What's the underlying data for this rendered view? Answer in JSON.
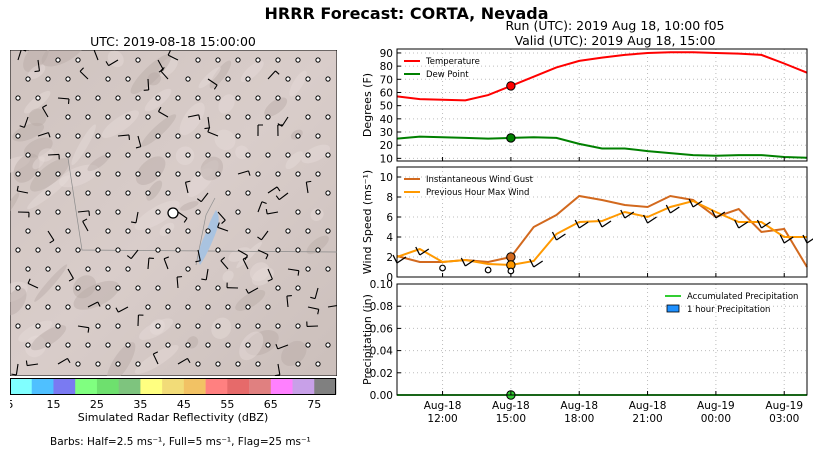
{
  "header": {
    "title": "HRRR Forecast: CORTA, Nevada",
    "run": "Run (UTC): 2019 Aug 18, 10:00 f05",
    "valid": "Valid (UTC): 2019 Aug 18, 15:00"
  },
  "map": {
    "title": "UTC: 2019-08-18 15:00:00",
    "colorbar_title": "Simulated Radar Reflectivity (dBZ)",
    "colorbar_ticks": [
      "5",
      "15",
      "25",
      "35",
      "45",
      "55",
      "65",
      "75"
    ],
    "colorbar_colors": [
      "#80ffff",
      "#4fc0ff",
      "#7a7af2",
      "#80ff80",
      "#6ee06e",
      "#7ec47e",
      "#ffff80",
      "#f2dc78",
      "#f2c264",
      "#ff8080",
      "#e66a6a",
      "#e08080",
      "#ff80ff",
      "#c8a0e8",
      "#808080"
    ],
    "barbs_note": "Barbs: Half=2.5 ms⁻¹, Full=5 ms⁻¹, Flag=25 ms⁻¹"
  },
  "chart_data": [
    {
      "type": "line",
      "ylabel": "Degrees (F)",
      "ylim": [
        8,
        93
      ],
      "yticks": [
        10,
        20,
        30,
        40,
        50,
        60,
        70,
        80,
        90
      ],
      "x_hours": [
        10,
        11,
        12,
        13,
        14,
        15,
        16,
        17,
        18,
        19,
        20,
        21,
        22,
        23,
        24,
        25,
        26,
        27,
        28
      ],
      "series": [
        {
          "name": "Temperature",
          "color": "#ff0000",
          "values": [
            57,
            55,
            54.5,
            54,
            58,
            65,
            72,
            79,
            84,
            86.5,
            88.5,
            90,
            90.5,
            90.5,
            90,
            89.5,
            88.5,
            82,
            75
          ]
        },
        {
          "name": "Dew Point",
          "color": "#008000",
          "values": [
            25,
            26.5,
            26,
            25.5,
            25,
            25.5,
            26,
            25.5,
            21,
            17.5,
            17.5,
            15.5,
            14,
            12.5,
            12,
            12.5,
            12.5,
            11,
            10.5
          ]
        }
      ],
      "marker_x": 15,
      "legend": "top-left"
    },
    {
      "type": "line",
      "ylabel": "Wind Speed (ms⁻¹)",
      "ylim": [
        0,
        11
      ],
      "yticks": [
        0,
        2,
        4,
        6,
        8,
        10
      ],
      "x_hours": [
        10,
        11,
        12,
        13,
        14,
        15,
        16,
        17,
        18,
        19,
        20,
        21,
        22,
        23,
        24,
        25,
        26,
        27,
        28
      ],
      "series": [
        {
          "name": "Instantaneous Wind Gust",
          "color": "#d2691e",
          "values": [
            2.1,
            1.5,
            1.5,
            1.7,
            1.5,
            2.0,
            5.0,
            6.2,
            8.1,
            7.7,
            7.2,
            7.0,
            8.1,
            7.7,
            6.0,
            6.8,
            4.5,
            4.8,
            1.0
          ]
        },
        {
          "name": "Previous Hour Max Wind",
          "color": "#ff9900",
          "values": [
            2.0,
            2.8,
            1.5,
            1.7,
            1.3,
            1.2,
            1.6,
            4.3,
            5.5,
            5.6,
            6.5,
            6.0,
            7.0,
            7.6,
            6.5,
            5.5,
            5.5,
            4.0,
            4.0
          ]
        }
      ],
      "marker_x": 15,
      "legend": "top-left"
    },
    {
      "type": "line",
      "ylabel": "Precipitation (in)",
      "ylim": [
        0,
        0.1
      ],
      "yticks": [
        "0.00",
        "0.02",
        "0.04",
        "0.06",
        "0.08",
        "0.10"
      ],
      "x_hours": [
        10,
        11,
        12,
        13,
        14,
        15,
        16,
        17,
        18,
        19,
        20,
        21,
        22,
        23,
        24,
        25,
        26,
        27,
        28
      ],
      "series": [
        {
          "name": "Accumulated Precipitation",
          "color": "#32cd32",
          "values": [
            0,
            0,
            0,
            0,
            0,
            0,
            0,
            0,
            0,
            0,
            0,
            0,
            0,
            0,
            0,
            0,
            0,
            0,
            0
          ]
        },
        {
          "name": "1 hour Precipitation",
          "color": "#1e90ff",
          "values": [
            0,
            0,
            0,
            0,
            0,
            0,
            0,
            0,
            0,
            0,
            0,
            0,
            0,
            0,
            0,
            0,
            0,
            0,
            0
          ]
        }
      ],
      "xtick_labels": [
        [
          "Aug-18",
          "12:00"
        ],
        [
          "Aug-18",
          "15:00"
        ],
        [
          "Aug-18",
          "18:00"
        ],
        [
          "Aug-18",
          "21:00"
        ],
        [
          "Aug-19",
          "00:00"
        ],
        [
          "Aug-19",
          "03:00"
        ]
      ],
      "xtick_hours": [
        12,
        15,
        18,
        21,
        24,
        27
      ],
      "marker_x": 15,
      "legend": "top-right"
    }
  ]
}
